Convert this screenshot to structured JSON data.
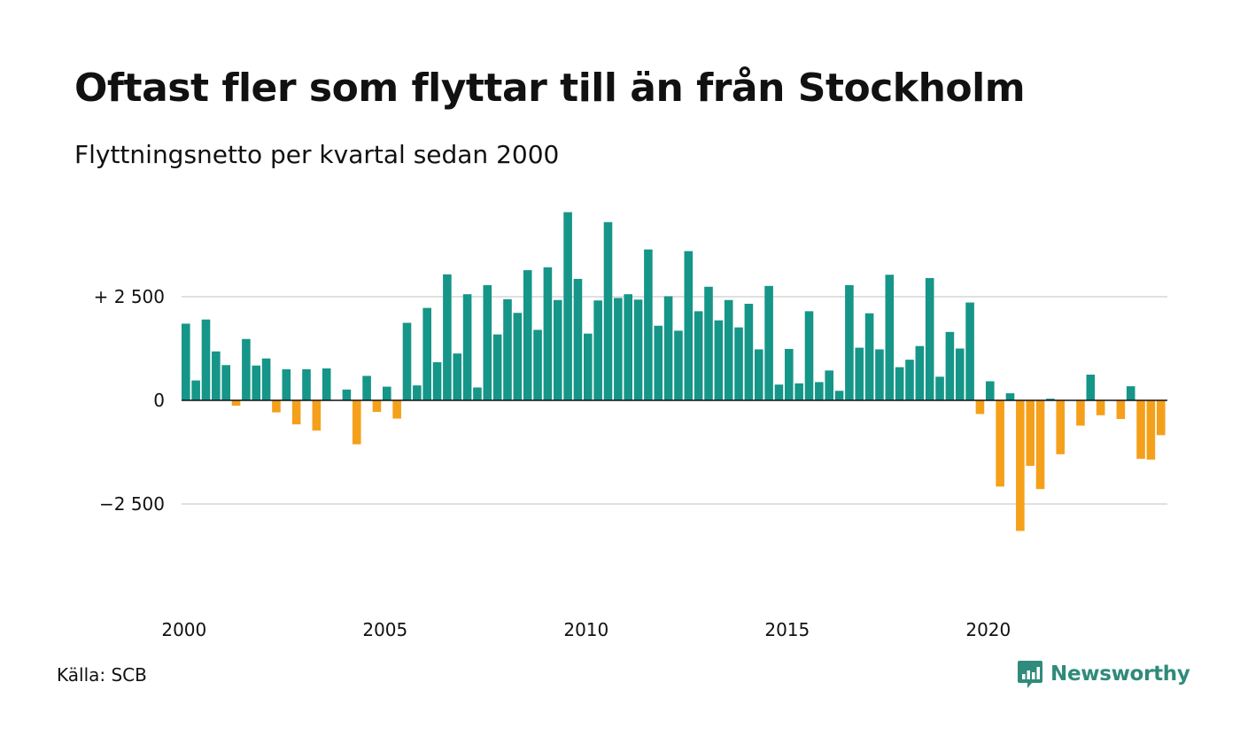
{
  "title": "Oftast fler som flyttar till än från Stockholm",
  "subtitle": "Flyttningsnetto per kvartal sedan 2000",
  "source": "Källa: SCB",
  "brand": {
    "name": "Newsworthy",
    "logo_icon": "bar-chart-speech-bubble-icon"
  },
  "colors": {
    "positive": "#159688",
    "negative": "#f5a01a",
    "gridline": "#e0e0e0",
    "zero_line": "#111111"
  },
  "chart_data": {
    "type": "bar",
    "title": "Oftast fler som flyttar till än från Stockholm",
    "subtitle": "Flyttningsnetto per kvartal sedan 2000",
    "x_start_year": 2000,
    "periods_per_year": 4,
    "x_tick_labels": [
      "2000",
      "2005",
      "2010",
      "2015",
      "2020"
    ],
    "y_ticks": [
      {
        "value": 2500,
        "label": "+ 2 500"
      },
      {
        "value": 0,
        "label": "0"
      },
      {
        "value": -2500,
        "label": "−2 500"
      }
    ],
    "ylim": [
      -5000,
      4600
    ],
    "grid": true,
    "values": [
      1850,
      480,
      1950,
      1180,
      850,
      -130,
      1480,
      840,
      1010,
      -290,
      750,
      -580,
      750,
      -730,
      770,
      0,
      260,
      -1060,
      590,
      -280,
      330,
      -440,
      1870,
      360,
      2230,
      920,
      3040,
      1130,
      2560,
      310,
      2780,
      1590,
      2440,
      2110,
      3140,
      1700,
      3210,
      2420,
      4540,
      2930,
      1610,
      2410,
      4300,
      2470,
      2560,
      2430,
      3640,
      1800,
      2510,
      1680,
      3600,
      2150,
      2740,
      1930,
      2420,
      1760,
      2330,
      1230,
      2760,
      380,
      1240,
      410,
      2150,
      440,
      720,
      230,
      2780,
      1270,
      2100,
      1230,
      3030,
      800,
      980,
      1310,
      2950,
      570,
      1650,
      1250,
      2360,
      -330,
      460,
      -2080,
      170,
      -3150,
      -1580,
      -2140,
      40,
      -1300,
      0,
      -610,
      620,
      -360,
      0,
      -450,
      340,
      -1410,
      -1430,
      -840
    ]
  }
}
